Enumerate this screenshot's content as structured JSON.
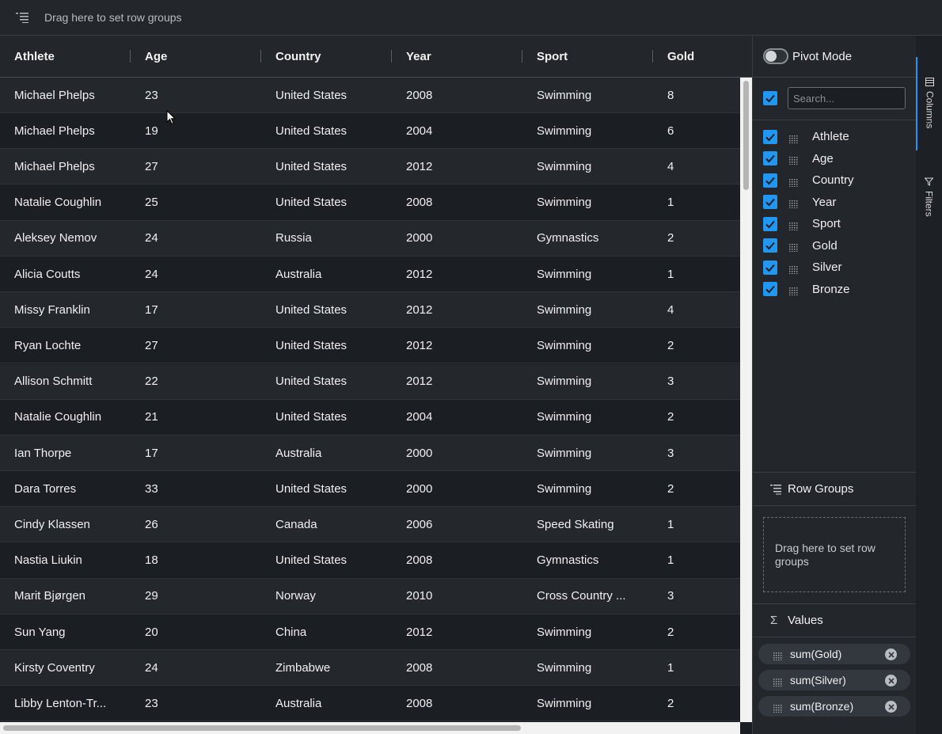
{
  "topbar": {
    "row_group_hint": "Drag here to set row groups"
  },
  "columns": [
    "Athlete",
    "Age",
    "Country",
    "Year",
    "Sport",
    "Gold"
  ],
  "rows": [
    [
      "Michael Phelps",
      "23",
      "United States",
      "2008",
      "Swimming",
      "8"
    ],
    [
      "Michael Phelps",
      "19",
      "United States",
      "2004",
      "Swimming",
      "6"
    ],
    [
      "Michael Phelps",
      "27",
      "United States",
      "2012",
      "Swimming",
      "4"
    ],
    [
      "Natalie Coughlin",
      "25",
      "United States",
      "2008",
      "Swimming",
      "1"
    ],
    [
      "Aleksey Nemov",
      "24",
      "Russia",
      "2000",
      "Gymnastics",
      "2"
    ],
    [
      "Alicia Coutts",
      "24",
      "Australia",
      "2012",
      "Swimming",
      "1"
    ],
    [
      "Missy Franklin",
      "17",
      "United States",
      "2012",
      "Swimming",
      "4"
    ],
    [
      "Ryan Lochte",
      "27",
      "United States",
      "2012",
      "Swimming",
      "2"
    ],
    [
      "Allison Schmitt",
      "22",
      "United States",
      "2012",
      "Swimming",
      "3"
    ],
    [
      "Natalie Coughlin",
      "21",
      "United States",
      "2004",
      "Swimming",
      "2"
    ],
    [
      "Ian Thorpe",
      "17",
      "Australia",
      "2000",
      "Swimming",
      "3"
    ],
    [
      "Dara Torres",
      "33",
      "United States",
      "2000",
      "Swimming",
      "2"
    ],
    [
      "Cindy Klassen",
      "26",
      "Canada",
      "2006",
      "Speed Skating",
      "1"
    ],
    [
      "Nastia Liukin",
      "18",
      "United States",
      "2008",
      "Gymnastics",
      "1"
    ],
    [
      "Marit Bjørgen",
      "29",
      "Norway",
      "2010",
      "Cross Country ...",
      "3"
    ],
    [
      "Sun Yang",
      "20",
      "China",
      "2012",
      "Swimming",
      "2"
    ],
    [
      "Kirsty Coventry",
      "24",
      "Zimbabwe",
      "2008",
      "Swimming",
      "1"
    ],
    [
      "Libby Lenton-Tr...",
      "23",
      "Australia",
      "2008",
      "Swimming",
      "2"
    ]
  ],
  "panel": {
    "pivot_mode_label": "Pivot Mode",
    "search_placeholder": "Search...",
    "column_list": [
      "Athlete",
      "Age",
      "Country",
      "Year",
      "Sport",
      "Gold",
      "Silver",
      "Bronze"
    ],
    "row_groups_title": "Row Groups",
    "row_groups_drop_hint": "Drag here to set row groups",
    "values_title": "Values",
    "values": [
      "sum(Gold)",
      "sum(Silver)",
      "sum(Bronze)"
    ]
  },
  "side_tabs": {
    "columns": "Columns",
    "filters": "Filters"
  },
  "colors": {
    "accent": "#2196f3",
    "background": "#1b1e22",
    "header": "#23272c"
  }
}
